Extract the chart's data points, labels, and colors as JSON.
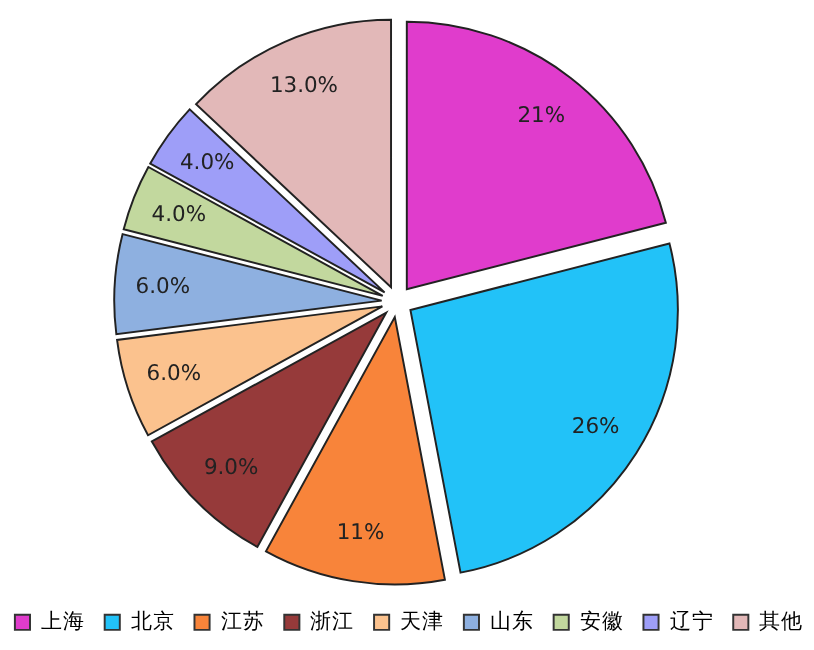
{
  "chart_data": {
    "type": "pie",
    "categories": [
      "上海",
      "北京",
      "江苏",
      "浙江",
      "天津",
      "山东",
      "安徽",
      "辽宁",
      "其他"
    ],
    "values": [
      21,
      26,
      11,
      9.0,
      6.0,
      6.0,
      4.0,
      4.0,
      13.0
    ],
    "value_labels": [
      "21%",
      "26%",
      "11%",
      "9.0%",
      "6.0%",
      "6.0%",
      "4.0%",
      "4.0%",
      "13.0%"
    ],
    "colors": [
      "#e03ccc",
      "#22c2f8",
      "#f8843a",
      "#963a3a",
      "#fbc28e",
      "#8eb0e0",
      "#c2d89e",
      "#9e9ef8",
      "#e2b8b8"
    ],
    "legend": "bottom"
  }
}
